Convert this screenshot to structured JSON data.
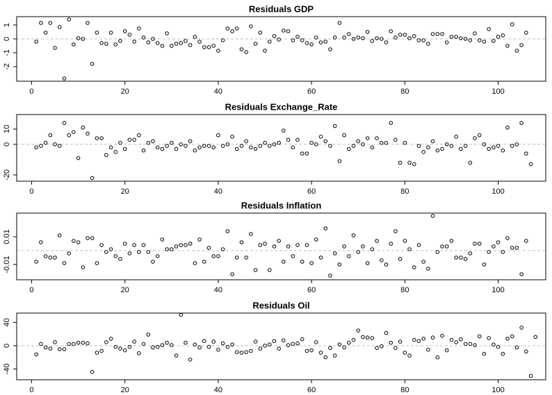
{
  "chart_data": [
    {
      "type": "scatter",
      "title": "Residuals GDP",
      "color": "#000000",
      "reference_line": 0,
      "reference_color": "#bebebe",
      "xlim": [
        -3.2,
        110.2
      ],
      "xticks": [
        0,
        20,
        40,
        60,
        80,
        100
      ],
      "ylim": [
        -3.05,
        1.6
      ],
      "yticks": [
        -2,
        -1,
        0,
        1
      ],
      "values": [
        -0.2,
        1.15,
        0.45,
        1.15,
        -0.65,
        0.85,
        -2.85,
        1.4,
        -0.4,
        0.05,
        0.0,
        1.15,
        -1.8,
        0.45,
        -0.3,
        -0.35,
        0.45,
        -0.4,
        -0.15,
        0.55,
        0.3,
        -0.2,
        0.75,
        0.1,
        -0.25,
        0.0,
        -0.3,
        -0.5,
        0.4,
        -0.5,
        -0.35,
        -0.3,
        -0.15,
        -0.45,
        0.15,
        -0.2,
        -0.6,
        -0.6,
        -0.5,
        -0.85,
        -0.1,
        0.75,
        0.55,
        0.75,
        -0.75,
        -0.95,
        0.9,
        -0.35,
        0.45,
        -0.85,
        -0.2,
        0.2,
        -0.05,
        0.6,
        0.55,
        -0.1,
        0.15,
        -0.1,
        -0.3,
        -0.4,
        0.1,
        -0.25,
        -0.2,
        -0.75,
        0.1,
        1.15,
        0.1,
        0.35,
        0.0,
        0.1,
        0.05,
        0.5,
        -0.15,
        0.05,
        0.0,
        -0.25,
        0.55,
        0.1,
        0.3,
        0.3,
        0.05,
        0.2,
        -0.1,
        -0.1,
        -0.35,
        0.35,
        0.35,
        0.35,
        -0.25,
        0.15,
        0.15,
        0.05,
        0.0,
        -0.1,
        0.4,
        -0.1,
        -0.2,
        0.7,
        -0.15,
        0.15,
        0.25,
        -0.5,
        1.05,
        -0.85,
        -0.45,
        0.45
      ]
    },
    {
      "type": "scatter",
      "title": "Residuals Exchange_Rate",
      "color": "#000000",
      "reference_line": 0,
      "reference_color": "#bebebe",
      "xlim": [
        -3.2,
        110.2
      ],
      "xticks": [
        0,
        20,
        40,
        60,
        80,
        100
      ],
      "ylim": [
        -24.1,
        19.5
      ],
      "yticks": [
        -20,
        0,
        10
      ],
      "values": [
        -2,
        -1,
        1,
        6,
        0,
        -1,
        14,
        6,
        8,
        -9,
        11,
        7,
        -22,
        4,
        4,
        -7,
        -2,
        -5,
        1,
        -3,
        3,
        3,
        6,
        -4,
        1,
        2,
        -2,
        -3,
        -1,
        1,
        -3,
        0,
        -1,
        2,
        -4,
        -2,
        -1,
        -1,
        -2,
        6,
        -1,
        0,
        5,
        -3,
        -1,
        2,
        -2,
        -3,
        -1,
        1,
        -1,
        0,
        1,
        9,
        3,
        -2,
        3,
        -6,
        -6,
        1,
        0,
        5,
        2,
        -1,
        12,
        -11,
        6,
        -3,
        -1,
        2,
        0,
        4,
        -2,
        4,
        1,
        1,
        14,
        3,
        -12,
        1,
        -12,
        -13,
        -1,
        -5,
        -2,
        2,
        -4,
        -3,
        0,
        -1,
        5,
        -3,
        -1,
        -12,
        4,
        6,
        0,
        -3,
        -2,
        -1,
        -4,
        11,
        -1,
        0,
        14,
        -6,
        -13
      ]
    },
    {
      "type": "scatter",
      "title": "Residuals Inflation",
      "color": "#000000",
      "reference_line": 0,
      "reference_color": "#bebebe",
      "xlim": [
        -3.2,
        110.2
      ],
      "xticks": [
        0,
        20,
        40,
        60,
        80,
        100
      ],
      "ylim": [
        -0.021,
        0.027
      ],
      "yticks": [
        -0.01,
        0.01
      ],
      "values": [
        -0.008,
        0.006,
        -0.004,
        -0.005,
        -0.005,
        0.011,
        -0.009,
        -0.002,
        0.007,
        0.006,
        -0.012,
        0.009,
        0.009,
        -0.009,
        0.004,
        -0.001,
        0.001,
        -0.004,
        -0.006,
        0.005,
        -0.002,
        0.004,
        -0.001,
        0.004,
        -0.001,
        -0.008,
        -0.004,
        0.008,
        0.001,
        0.001,
        0.003,
        0.004,
        0.004,
        0.005,
        -0.009,
        0.008,
        -0.008,
        0.002,
        -0.004,
        -0.004,
        0.001,
        0.014,
        -0.017,
        -0.005,
        0.006,
        -0.005,
        0.012,
        -0.014,
        0.004,
        0.005,
        -0.014,
        0.003,
        0.007,
        -0.008,
        0.003,
        -0.004,
        0.004,
        -0.008,
        0.004,
        -0.009,
        0.008,
        -0.005,
        0.016,
        -0.018,
        -0.002,
        -0.01,
        0.003,
        -0.004,
        0.011,
        -0.001,
        0.003,
        -0.009,
        0.001,
        0.007,
        -0.007,
        -0.01,
        0.005,
        0.014,
        -0.006,
        0.007,
        0.001,
        -0.012,
        0.004,
        -0.008,
        -0.013,
        0.025,
        -0.001,
        0.003,
        0.003,
        0.007,
        -0.005,
        -0.005,
        -0.006,
        -0.002,
        0.005,
        0.005,
        -0.01,
        -0.001,
        0.003,
        0.006,
        -0.001,
        0.009,
        0.002,
        0.002,
        -0.017,
        0.007
      ]
    },
    {
      "type": "scatter",
      "title": "Residuals Oil",
      "color": "#000000",
      "reference_line": 0,
      "reference_color": "#bebebe",
      "xlim": [
        -3.2,
        110.2
      ],
      "xticks": [
        0,
        20,
        40,
        60,
        80,
        100
      ],
      "ylim": [
        -58.5,
        56
      ],
      "yticks": [
        -40,
        0,
        40
      ],
      "values": [
        -15,
        3,
        -3,
        -5,
        6,
        -6,
        -6,
        3,
        3,
        5,
        5,
        4,
        -45,
        -12,
        -9,
        6,
        12,
        -2,
        -5,
        -8,
        -2,
        7,
        -13,
        3,
        19,
        -3,
        -2,
        1,
        5,
        1,
        -17,
        53,
        5,
        -24,
        2,
        -3,
        8,
        -2,
        7,
        -7,
        4,
        -2,
        2,
        -11,
        -12,
        -11,
        -9,
        7,
        -5,
        0,
        2,
        8,
        -5,
        9,
        1,
        3,
        4,
        11,
        -9,
        -8,
        6,
        -12,
        -20,
        -4,
        -17,
        2,
        -3,
        5,
        10,
        26,
        15,
        14,
        13,
        -4,
        -1,
        22,
        5,
        -4,
        7,
        -12,
        -17,
        10,
        8,
        12,
        -7,
        14,
        -20,
        17,
        -8,
        10,
        6,
        11,
        3,
        3,
        1,
        16,
        -14,
        13,
        2,
        -2,
        -14,
        12,
        16,
        -3,
        31,
        -10,
        -52,
        15
      ]
    }
  ]
}
